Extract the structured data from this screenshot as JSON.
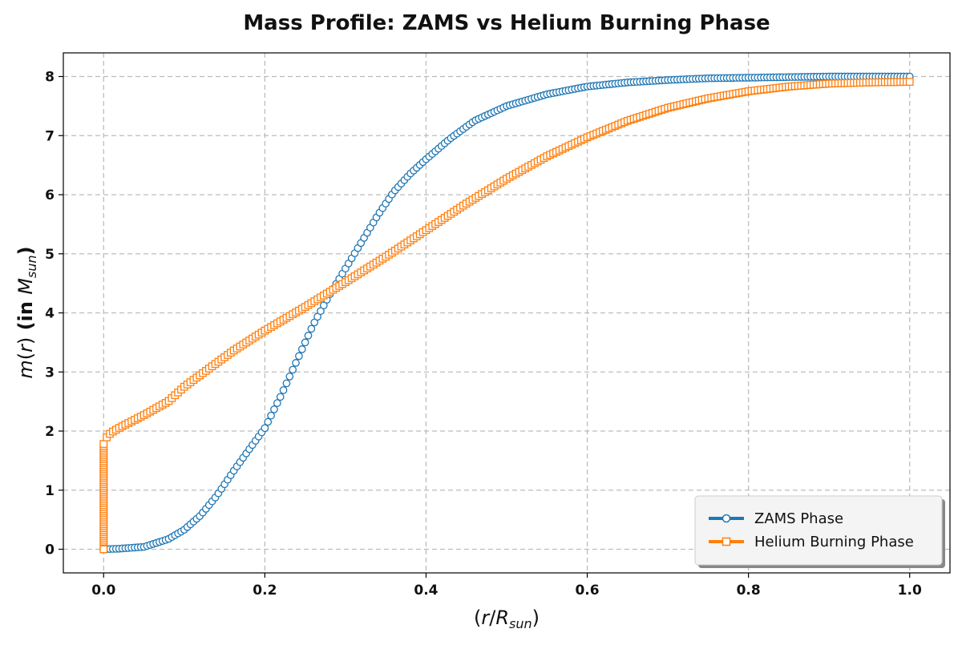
{
  "chart_data": {
    "type": "line",
    "title": "Mass Profile: ZAMS vs Helium Burning Phase",
    "xlabel": {
      "open": "(",
      "var": "r",
      "sep": "/",
      "base": "R",
      "sub": "sun",
      "close": ")"
    },
    "ylabel": {
      "fn": "m",
      "open": "(",
      "arg": "r",
      "close": ")",
      "mid": " (in ",
      "base": "M",
      "sub": "sun",
      "end": ")"
    },
    "xlim": [
      -0.05,
      1.05
    ],
    "ylim": [
      -0.4,
      8.4
    ],
    "xticks": [
      0.0,
      0.2,
      0.4,
      0.6,
      0.8,
      1.0
    ],
    "xtick_labels": [
      "0.0",
      "0.2",
      "0.4",
      "0.6",
      "0.8",
      "1.0"
    ],
    "yticks": [
      0,
      1,
      2,
      3,
      4,
      5,
      6,
      7,
      8
    ],
    "ytick_labels": [
      "0",
      "1",
      "2",
      "3",
      "4",
      "5",
      "6",
      "7",
      "8"
    ],
    "grid": true,
    "legend_position": "bottom-right",
    "series": [
      {
        "name": "ZAMS Phase",
        "color": "#1f77b4",
        "marker": "circle",
        "x": [
          0.0,
          0.02,
          0.05,
          0.08,
          0.1,
          0.12,
          0.14,
          0.16,
          0.18,
          0.2,
          0.22,
          0.24,
          0.26,
          0.28,
          0.3,
          0.32,
          0.34,
          0.36,
          0.38,
          0.4,
          0.43,
          0.46,
          0.5,
          0.55,
          0.6,
          0.65,
          0.7,
          0.75,
          0.8,
          0.9,
          1.0
        ],
        "y": [
          0.0,
          0.01,
          0.04,
          0.17,
          0.33,
          0.57,
          0.9,
          1.3,
          1.68,
          2.05,
          2.6,
          3.2,
          3.8,
          4.3,
          4.75,
          5.2,
          5.65,
          6.05,
          6.35,
          6.6,
          6.95,
          7.25,
          7.5,
          7.7,
          7.83,
          7.9,
          7.94,
          7.97,
          7.98,
          8.0,
          8.0
        ]
      },
      {
        "name": "Helium Burning Phase",
        "color": "#ff7f0e",
        "marker": "square",
        "x": [
          0.0,
          0.0,
          0.0,
          0.0,
          0.0,
          0.0,
          0.002,
          0.005,
          0.01,
          0.02,
          0.03,
          0.05,
          0.08,
          0.1,
          0.13,
          0.16,
          0.2,
          0.25,
          0.3,
          0.35,
          0.4,
          0.45,
          0.5,
          0.55,
          0.6,
          0.65,
          0.7,
          0.75,
          0.8,
          0.85,
          0.9,
          0.95,
          1.0
        ],
        "y": [
          0.0,
          0.5,
          1.0,
          1.4,
          1.7,
          1.8,
          1.85,
          1.92,
          1.98,
          2.06,
          2.13,
          2.27,
          2.5,
          2.75,
          3.05,
          3.35,
          3.7,
          4.1,
          4.52,
          4.95,
          5.4,
          5.85,
          6.27,
          6.65,
          6.97,
          7.25,
          7.47,
          7.63,
          7.75,
          7.83,
          7.88,
          7.9,
          7.91
        ]
      }
    ]
  }
}
